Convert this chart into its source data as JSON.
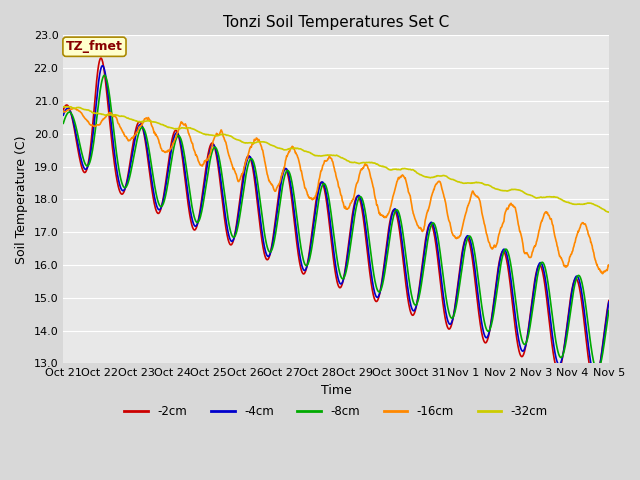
{
  "title": "Tonzi Soil Temperatures Set C",
  "xlabel": "Time",
  "ylabel": "Soil Temperature (C)",
  "ylim": [
    13.0,
    23.0
  ],
  "yticks": [
    13.0,
    14.0,
    15.0,
    16.0,
    17.0,
    18.0,
    19.0,
    20.0,
    21.0,
    22.0,
    23.0
  ],
  "xtick_labels": [
    "Oct 21",
    "Oct 22",
    "Oct 23",
    "Oct 24",
    "Oct 25",
    "Oct 26",
    "Oct 27",
    "Oct 28",
    "Oct 29",
    "Oct 30",
    "Oct 31",
    "Nov 1",
    "Nov 2",
    "Nov 3",
    "Nov 4",
    "Nov 5"
  ],
  "colors": {
    "-2cm": "#CC0000",
    "-4cm": "#0000CC",
    "-8cm": "#00AA00",
    "-16cm": "#FF8800",
    "-32cm": "#CCCC00"
  },
  "legend_label": "TZ_fmet",
  "legend_bg": "#FFFFCC",
  "legend_border": "#AA8800",
  "line_width": 1.2,
  "title_fontsize": 11,
  "axis_fontsize": 9,
  "tick_fontsize": 8,
  "fig_bg": "#D8D8D8",
  "plot_bg": "#E8E8E8"
}
